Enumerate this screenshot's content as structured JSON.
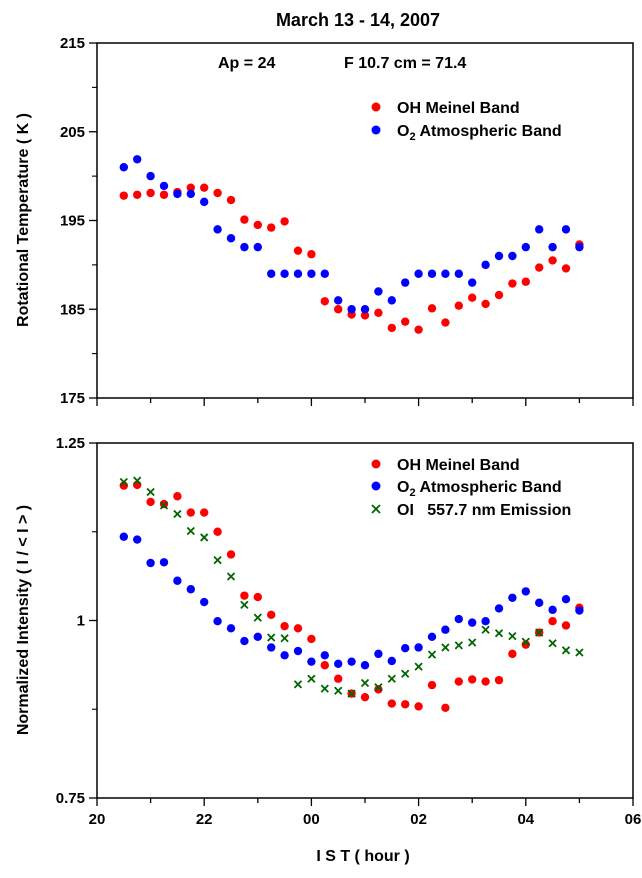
{
  "chart_data": [
    {
      "type": "scatter",
      "title": "March 13 - 14, 2007",
      "annotations": [
        {
          "text": "Ap = 24"
        },
        {
          "text": "F 10.7 cm = 71.4"
        }
      ],
      "ylabel": "Rotational Temperature ( K )",
      "xlabel": "",
      "ylim": [
        175,
        215
      ],
      "yticks": [
        "175",
        "185",
        "195",
        "205",
        "215"
      ],
      "xlim": [
        20,
        30
      ],
      "legend_position": "top-right",
      "series": [
        {
          "name": "OH Meinel Band",
          "color": "#ff0000",
          "marker": "circle",
          "points": [
            [
              20.5,
              197.8
            ],
            [
              20.75,
              197.9
            ],
            [
              21.0,
              198.1
            ],
            [
              21.25,
              197.9
            ],
            [
              21.5,
              198.2
            ],
            [
              21.75,
              198.7
            ],
            [
              22.0,
              198.7
            ],
            [
              22.25,
              198.1
            ],
            [
              22.5,
              197.3
            ],
            [
              22.75,
              195.1
            ],
            [
              23.0,
              194.5
            ],
            [
              23.25,
              194.2
            ],
            [
              23.5,
              194.9
            ],
            [
              23.75,
              191.6
            ],
            [
              24.0,
              191.2
            ],
            [
              24.25,
              185.9
            ],
            [
              24.5,
              185.0
            ],
            [
              24.75,
              184.4
            ],
            [
              25.0,
              184.3
            ],
            [
              25.25,
              184.6
            ],
            [
              25.5,
              182.9
            ],
            [
              25.75,
              183.6
            ],
            [
              26.0,
              182.7
            ],
            [
              26.25,
              185.1
            ],
            [
              26.5,
              183.5
            ],
            [
              26.75,
              185.4
            ],
            [
              27.0,
              186.3
            ],
            [
              27.25,
              185.6
            ],
            [
              27.5,
              186.6
            ],
            [
              27.75,
              187.9
            ],
            [
              28.0,
              188.1
            ],
            [
              28.25,
              189.7
            ],
            [
              28.5,
              190.5
            ],
            [
              28.75,
              189.6
            ],
            [
              29.0,
              192.3
            ]
          ]
        },
        {
          "name": "O2 Atmospheric Band",
          "name_parts": [
            "O",
            "2",
            "Atmospheric Band"
          ],
          "color": "#0000ff",
          "marker": "circle",
          "points": [
            [
              20.5,
              201.0
            ],
            [
              20.75,
              201.9
            ],
            [
              21.0,
              200.0
            ],
            [
              21.25,
              198.9
            ],
            [
              21.5,
              198.0
            ],
            [
              21.75,
              198.0
            ],
            [
              22.0,
              197.1
            ],
            [
              22.25,
              194.0
            ],
            [
              22.5,
              193.0
            ],
            [
              22.75,
              192.0
            ],
            [
              23.0,
              192.0
            ],
            [
              23.25,
              189.0
            ],
            [
              23.5,
              189.0
            ],
            [
              23.75,
              189.0
            ],
            [
              24.0,
              189.0
            ],
            [
              24.25,
              189.0
            ],
            [
              24.5,
              186.0
            ],
            [
              24.75,
              185.0
            ],
            [
              25.0,
              185.0
            ],
            [
              25.25,
              187.0
            ],
            [
              25.5,
              186.0
            ],
            [
              25.75,
              188.0
            ],
            [
              26.0,
              189.0
            ],
            [
              26.25,
              189.0
            ],
            [
              26.5,
              189.0
            ],
            [
              26.75,
              189.0
            ],
            [
              27.0,
              188.0
            ],
            [
              27.25,
              190.0
            ],
            [
              27.5,
              191.0
            ],
            [
              27.75,
              191.0
            ],
            [
              28.0,
              192.0
            ],
            [
              28.25,
              194.0
            ],
            [
              28.5,
              192.0
            ],
            [
              28.75,
              194.0
            ],
            [
              29.0,
              192.0
            ]
          ]
        }
      ]
    },
    {
      "type": "scatter",
      "title": "",
      "ylabel": "Normalized Intensity ( I / < I > )",
      "xlabel": "I S T ( hour )",
      "ylim": [
        0.75,
        1.25
      ],
      "yticks": [
        "0.75",
        "1",
        "1.25"
      ],
      "xlim": [
        20,
        30
      ],
      "xticks": [
        "20",
        "22",
        "00",
        "02",
        "04",
        "06"
      ],
      "legend_position": "top-right",
      "series": [
        {
          "name": "OH Meinel Band",
          "color": "#ff0000",
          "marker": "circle",
          "points": [
            [
              20.5,
              1.19
            ],
            [
              20.75,
              1.191
            ],
            [
              21.0,
              1.167
            ],
            [
              21.25,
              1.164
            ],
            [
              21.5,
              1.175
            ],
            [
              21.75,
              1.152
            ],
            [
              22.0,
              1.152
            ],
            [
              22.25,
              1.125
            ],
            [
              22.5,
              1.093
            ],
            [
              22.75,
              1.035
            ],
            [
              23.0,
              1.033
            ],
            [
              23.25,
              1.008
            ],
            [
              23.5,
              0.992
            ],
            [
              23.75,
              0.989
            ],
            [
              24.0,
              0.974
            ],
            [
              24.25,
              0.937
            ],
            [
              24.5,
              0.918
            ],
            [
              24.75,
              0.897
            ],
            [
              25.0,
              0.892
            ],
            [
              25.25,
              0.903
            ],
            [
              25.5,
              0.883
            ],
            [
              25.75,
              0.882
            ],
            [
              26.0,
              0.879
            ],
            [
              26.25,
              0.909
            ],
            [
              26.5,
              0.877
            ],
            [
              26.75,
              0.914
            ],
            [
              27.0,
              0.917
            ],
            [
              27.25,
              0.914
            ],
            [
              27.5,
              0.916
            ],
            [
              27.75,
              0.953
            ],
            [
              28.0,
              0.966
            ],
            [
              28.25,
              0.983
            ],
            [
              28.5,
              0.999
            ],
            [
              28.75,
              0.993
            ],
            [
              29.0,
              1.018
            ]
          ]
        },
        {
          "name": "O2 Atmospheric Band",
          "name_parts": [
            "O",
            "2",
            "Atmospheric Band"
          ],
          "color": "#0000ff",
          "marker": "circle",
          "points": [
            [
              20.5,
              1.118
            ],
            [
              20.75,
              1.114
            ],
            [
              21.0,
              1.081
            ],
            [
              21.25,
              1.082
            ],
            [
              21.5,
              1.056
            ],
            [
              21.75,
              1.044
            ],
            [
              22.0,
              1.026
            ],
            [
              22.25,
              0.999
            ],
            [
              22.5,
              0.989
            ],
            [
              22.75,
              0.971
            ],
            [
              23.0,
              0.977
            ],
            [
              23.25,
              0.962
            ],
            [
              23.5,
              0.951
            ],
            [
              23.75,
              0.957
            ],
            [
              24.0,
              0.942
            ],
            [
              24.25,
              0.951
            ],
            [
              24.5,
              0.939
            ],
            [
              24.75,
              0.942
            ],
            [
              25.0,
              0.937
            ],
            [
              25.25,
              0.953
            ],
            [
              25.5,
              0.943
            ],
            [
              25.75,
              0.961
            ],
            [
              26.0,
              0.962
            ],
            [
              26.25,
              0.977
            ],
            [
              26.5,
              0.987
            ],
            [
              26.75,
              1.002
            ],
            [
              27.0,
              0.997
            ],
            [
              27.25,
              0.999
            ],
            [
              27.5,
              1.017
            ],
            [
              27.75,
              1.032
            ],
            [
              28.0,
              1.041
            ],
            [
              28.25,
              1.025
            ],
            [
              28.5,
              1.015
            ],
            [
              28.75,
              1.03
            ],
            [
              29.0,
              1.014
            ]
          ]
        },
        {
          "name": "OI   557.7 nm Emission",
          "color": "#006400",
          "marker": "x",
          "points": [
            [
              20.5,
              1.195
            ],
            [
              20.75,
              1.197
            ],
            [
              21.0,
              1.181
            ],
            [
              21.25,
              1.162
            ],
            [
              21.5,
              1.15
            ],
            [
              21.75,
              1.126
            ],
            [
              22.0,
              1.117
            ],
            [
              22.25,
              1.085
            ],
            [
              22.5,
              1.062
            ],
            [
              22.75,
              1.022
            ],
            [
              23.0,
              1.004
            ],
            [
              23.25,
              0.976
            ],
            [
              23.5,
              0.975
            ],
            [
              23.75,
              0.91
            ],
            [
              24.0,
              0.918
            ],
            [
              24.25,
              0.904
            ],
            [
              24.5,
              0.901
            ],
            [
              24.75,
              0.897
            ],
            [
              25.0,
              0.912
            ],
            [
              25.25,
              0.906
            ],
            [
              25.5,
              0.918
            ],
            [
              25.75,
              0.925
            ],
            [
              26.0,
              0.935
            ],
            [
              26.25,
              0.952
            ],
            [
              26.5,
              0.962
            ],
            [
              26.75,
              0.965
            ],
            [
              27.0,
              0.969
            ],
            [
              27.25,
              0.987
            ],
            [
              27.5,
              0.982
            ],
            [
              27.75,
              0.978
            ],
            [
              28.0,
              0.97
            ],
            [
              28.25,
              0.983
            ],
            [
              28.5,
              0.968
            ],
            [
              28.75,
              0.958
            ],
            [
              29.0,
              0.955
            ]
          ]
        }
      ]
    }
  ]
}
